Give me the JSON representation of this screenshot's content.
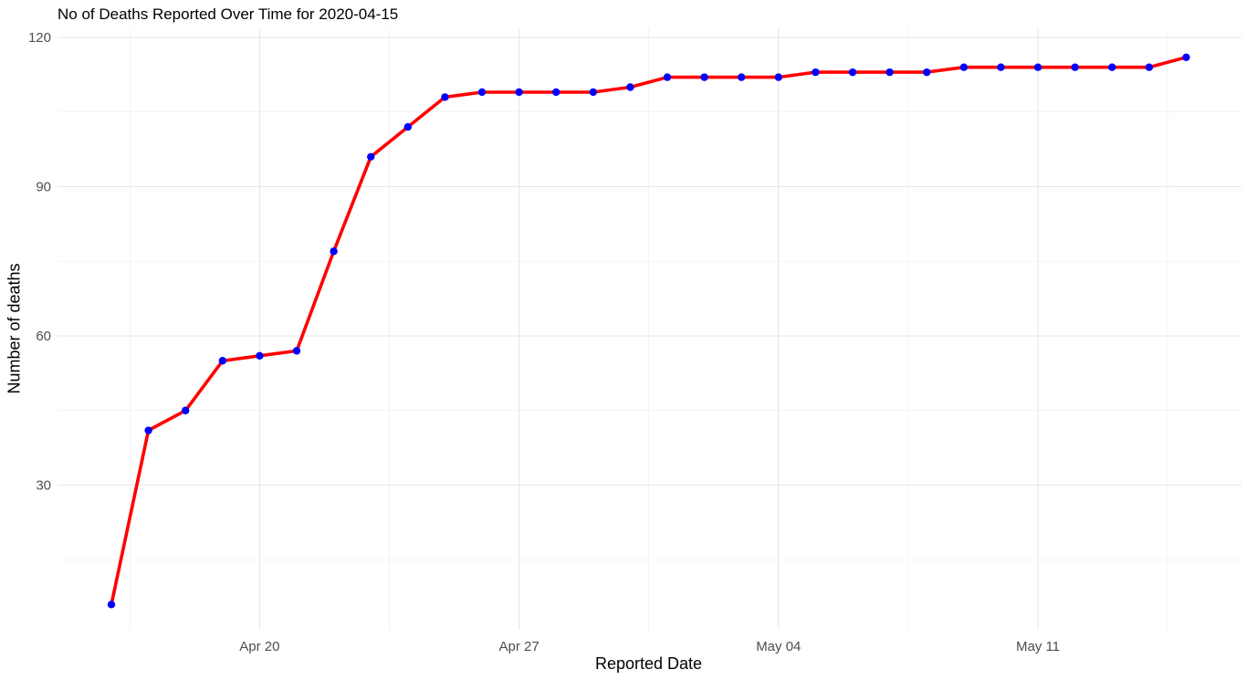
{
  "chart_data": {
    "type": "line",
    "title": "No of Deaths Reported Over Time for 2020-04-15",
    "xlabel": "Reported Date",
    "ylabel": "Number of deaths",
    "x_start": "2020-04-16",
    "x": [
      "Apr 16",
      "Apr 17",
      "Apr 18",
      "Apr 19",
      "Apr 20",
      "Apr 21",
      "Apr 22",
      "Apr 23",
      "Apr 24",
      "Apr 25",
      "Apr 26",
      "Apr 27",
      "Apr 28",
      "Apr 29",
      "Apr 30",
      "May 01",
      "May 02",
      "May 03",
      "May 04",
      "May 05",
      "May 06",
      "May 07",
      "May 08",
      "May 09",
      "May 10",
      "May 11",
      "May 12",
      "May 13",
      "May 14",
      "May 15"
    ],
    "values": [
      6,
      41,
      45,
      55,
      56,
      57,
      77,
      96,
      102,
      108,
      109,
      109,
      109,
      109,
      110,
      112,
      112,
      112,
      112,
      113,
      113,
      113,
      113,
      114,
      114,
      114,
      114,
      114,
      114,
      116
    ],
    "xticks": [
      "Apr 20",
      "Apr 27",
      "May 04",
      "May 11"
    ],
    "yticks": [
      30,
      60,
      90,
      120
    ],
    "ylim": [
      0,
      120
    ],
    "grid": true,
    "line_color": "#ff0000",
    "point_color": "#0000ff"
  }
}
